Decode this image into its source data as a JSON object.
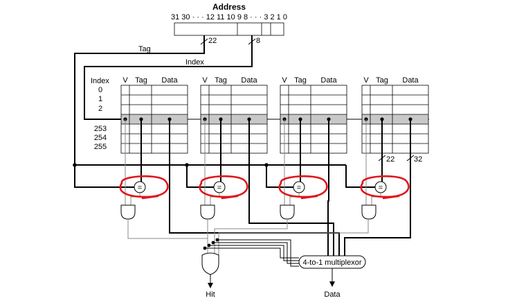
{
  "address": {
    "title": "Address",
    "bits": "31 30 · · · 12 11 10 9 8 · · · 3 2 1 0",
    "tag_width": "22",
    "index_width": "8"
  },
  "labels": {
    "tag": "Tag",
    "index": "Index",
    "hit": "Hit",
    "data": "Data",
    "mux": "4-to-1 multiplexor",
    "eq": "=",
    "tag_bus": "22",
    "data_bus": "32"
  },
  "table": {
    "row_header": "Index",
    "rows_top": [
      "0",
      "1",
      "2"
    ],
    "rows_bottom": [
      "253",
      "254",
      "255"
    ],
    "col_v": "V",
    "col_tag": "Tag",
    "col_data": "Data"
  },
  "annotation_color": "#e0151b"
}
